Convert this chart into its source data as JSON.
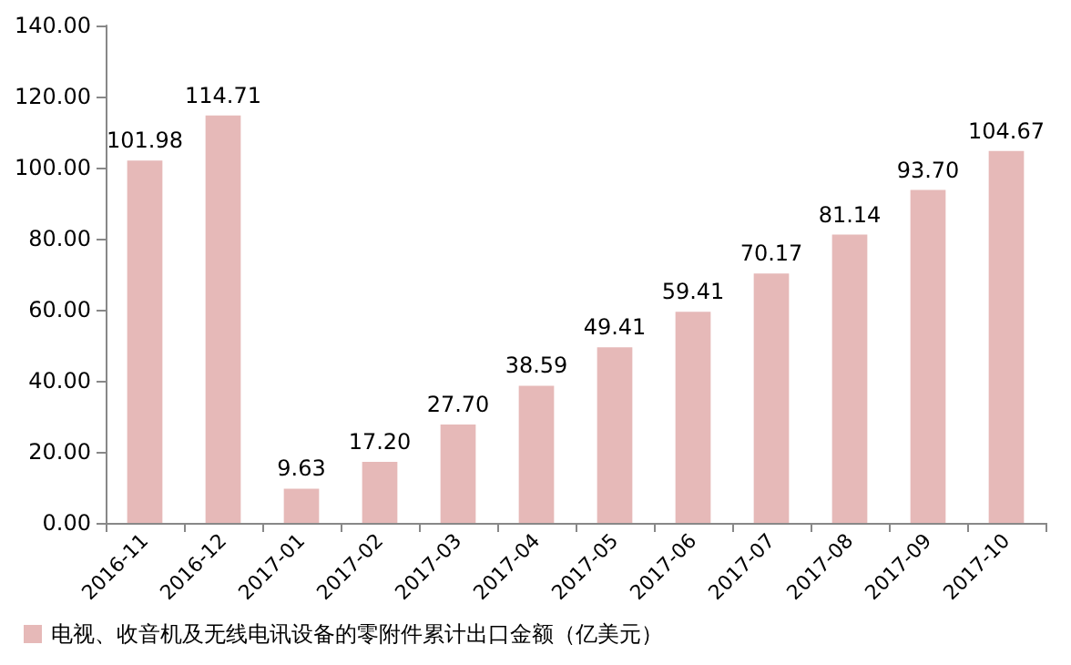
{
  "chart_data": {
    "type": "bar",
    "categories": [
      "2016-11",
      "2016-12",
      "2017-01",
      "2017-02",
      "2017-03",
      "2017-04",
      "2017-05",
      "2017-06",
      "2017-07",
      "2017-08",
      "2017-09",
      "2017-10"
    ],
    "series": [
      {
        "name": "电视、收音机及无线电讯设备的零附件累计出口金额（亿美元）",
        "color": "#e6b9b8",
        "values": [
          101.98,
          114.71,
          9.63,
          17.2,
          27.7,
          38.59,
          49.41,
          59.41,
          70.17,
          81.14,
          93.7,
          104.67
        ],
        "value_labels": [
          "101.98",
          "114.71",
          "9.63",
          "17.20",
          "27.70",
          "38.59",
          "49.41",
          "59.41",
          "70.17",
          "81.14",
          "93.70",
          "104.67"
        ]
      }
    ],
    "ylim": [
      0,
      140
    ],
    "yticks": [
      {
        "value": 0,
        "label": "0.00"
      },
      {
        "value": 20,
        "label": "20.00"
      },
      {
        "value": 40,
        "label": "40.00"
      },
      {
        "value": 60,
        "label": "60.00"
      },
      {
        "value": 80,
        "label": "80.00"
      },
      {
        "value": 100,
        "label": "100.00"
      },
      {
        "value": 120,
        "label": "120.00"
      },
      {
        "value": 140,
        "label": "140.00"
      }
    ],
    "grid": false,
    "legend": "bottom"
  }
}
